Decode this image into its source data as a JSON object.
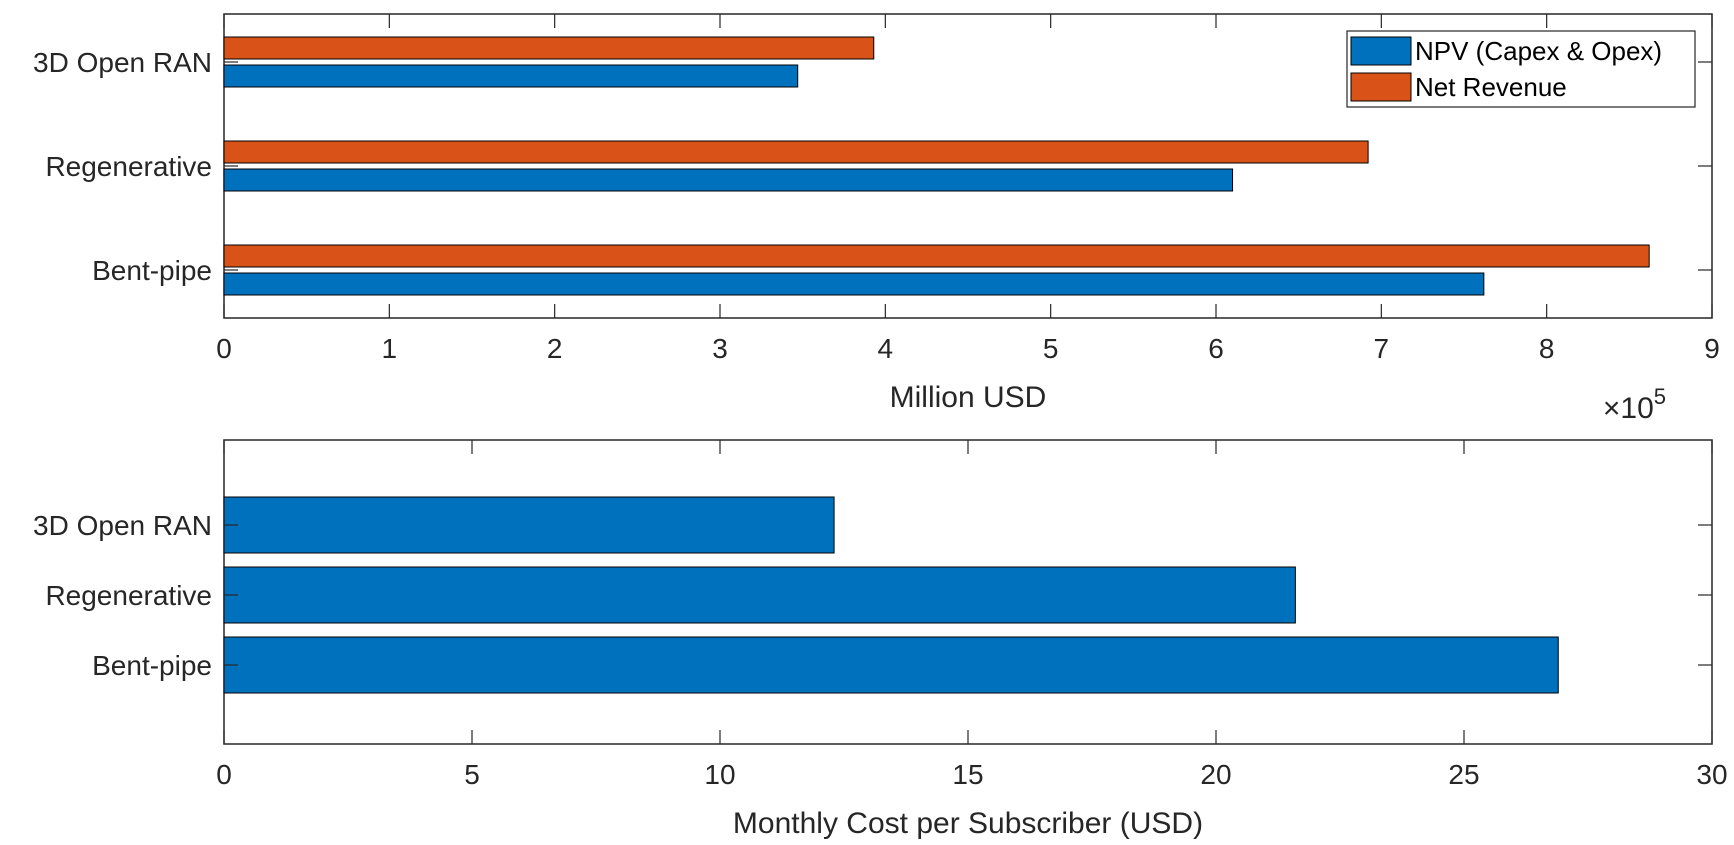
{
  "colors": {
    "series_blue": "#0072BD",
    "series_orange": "#D95319",
    "axis": "#262626",
    "bar_edge": "#000000"
  },
  "chart_data": [
    {
      "type": "bar",
      "orientation": "horizontal",
      "categories": [
        "Bent-pipe",
        "Regenerative",
        "3D Open RAN"
      ],
      "series": [
        {
          "name": "NPV (Capex & Opex)",
          "values": [
            762000,
            610000,
            347000
          ]
        },
        {
          "name": "Net Revenue",
          "values": [
            862000,
            692000,
            393000
          ]
        }
      ],
      "xlabel": "Million USD",
      "xlim": [
        0,
        900000
      ],
      "xticks": [
        0,
        100000,
        200000,
        300000,
        400000,
        500000,
        600000,
        700000,
        800000,
        900000
      ],
      "xtick_labels": [
        "0",
        "1",
        "2",
        "3",
        "4",
        "5",
        "6",
        "7",
        "8",
        "9"
      ],
      "exponent_base": "×10",
      "exponent_power": "5",
      "legend_position": "top-right",
      "grid": false
    },
    {
      "type": "bar",
      "orientation": "horizontal",
      "categories": [
        "Bent-pipe",
        "Regenerative",
        "3D Open RAN"
      ],
      "series": [
        {
          "name": "Monthly Cost per Subscriber",
          "values": [
            26.9,
            21.6,
            12.3
          ]
        }
      ],
      "xlabel": "Monthly Cost per Subscriber (USD)",
      "xlim": [
        0,
        30
      ],
      "xticks": [
        0,
        5,
        10,
        15,
        20,
        25,
        30
      ],
      "xtick_labels": [
        "0",
        "5",
        "10",
        "15",
        "20",
        "25",
        "30"
      ],
      "grid": false
    }
  ]
}
